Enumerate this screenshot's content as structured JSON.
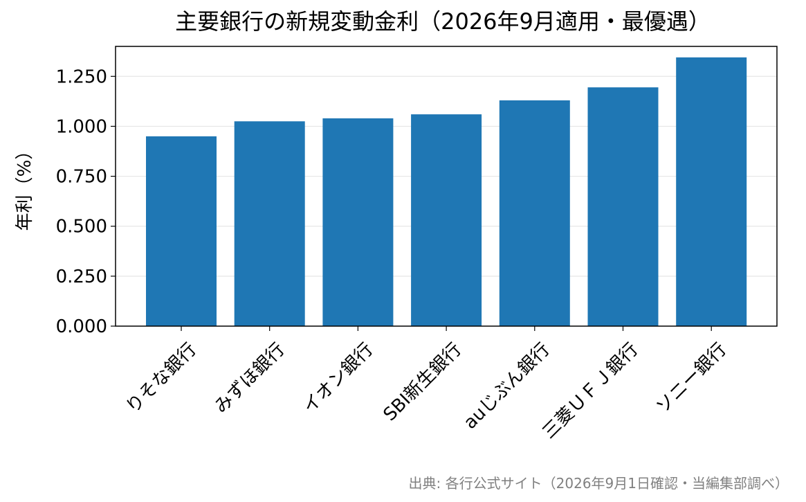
{
  "chart_data": {
    "type": "bar",
    "title": "主要銀行の新規変動金利（2026年9月適用・最優遇）",
    "xlabel": "",
    "ylabel": "年利（%）",
    "categories": [
      "りそな銀行",
      "みずほ銀行",
      "イオン銀行",
      "SBI新生銀行",
      "auじぶん銀行",
      "三菱ＵＦＪ銀行",
      "ソニー銀行"
    ],
    "values": [
      0.95,
      1.025,
      1.04,
      1.06,
      1.13,
      1.195,
      1.345
    ],
    "ylim": [
      0,
      1.4
    ],
    "yticks": [
      "0.000",
      "0.250",
      "0.500",
      "0.750",
      "1.000",
      "1.250"
    ],
    "grid": "y",
    "bar_color": "#1f77b4",
    "source": "出典: 各行公式サイト（2026年9月1日確認・当編集部調べ）"
  }
}
